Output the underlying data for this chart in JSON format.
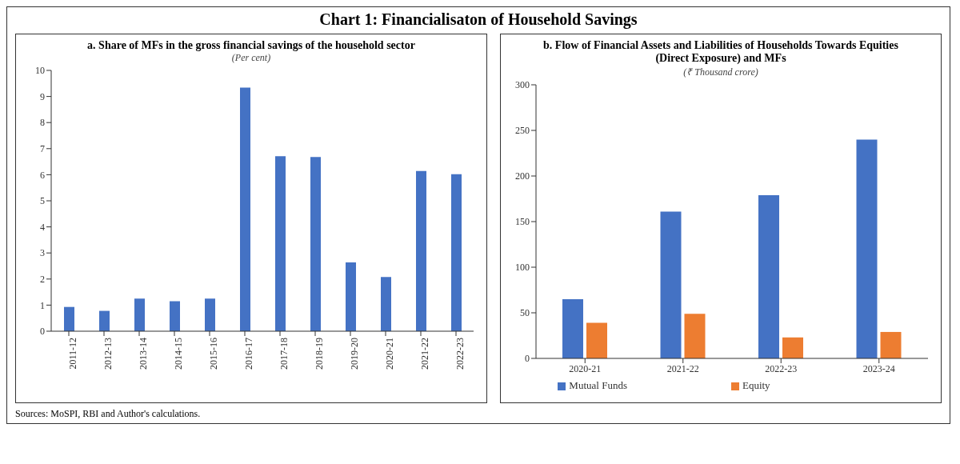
{
  "chart_data": [
    {
      "type": "bar",
      "title": "a. Share of MFs in the gross financial savings of the household sector",
      "subtitle": "(Per cent)",
      "annotations": [
        "Chart 1: Financialisaton of Household Savings"
      ],
      "categories": [
        "2011-12",
        "2012-13",
        "2013-14",
        "2014-15",
        "2015-16",
        "2016-17",
        "2017-18",
        "2018-19",
        "2019-20",
        "2020-21",
        "2021-22",
        "2022-23"
      ],
      "values": [
        0.93,
        0.78,
        1.25,
        1.15,
        1.25,
        9.34,
        6.71,
        6.68,
        2.64,
        2.08,
        6.14,
        6.02
      ],
      "color": "#4472c4",
      "ylim": [
        0,
        10
      ],
      "yticks": [
        0,
        1,
        2,
        3,
        4,
        5,
        6,
        7,
        8,
        9,
        10
      ],
      "grid": false,
      "legend": false
    },
    {
      "type": "bar",
      "title": "b. Flow of Financial Assets and Liabilities of Households Towards Equities (Direct Exposure) and MFs",
      "subtitle": "(₹ Thousand crore)",
      "annotations": [
        "Sources: MoSPI, RBI and Author's calculations."
      ],
      "categories": [
        "2020-21",
        "2021-22",
        "2022-23",
        "2023-24"
      ],
      "series": [
        {
          "name": "Mutual Funds",
          "color": "#4472c4",
          "values": [
            65,
            161,
            179,
            240
          ]
        },
        {
          "name": "Equity",
          "color": "#ed7d31",
          "values": [
            39,
            49,
            23,
            29
          ]
        }
      ],
      "ylim": [
        0,
        300
      ],
      "yticks": [
        0,
        50,
        100,
        150,
        200,
        250,
        300
      ],
      "grid": false,
      "legend": "bottom"
    }
  ]
}
